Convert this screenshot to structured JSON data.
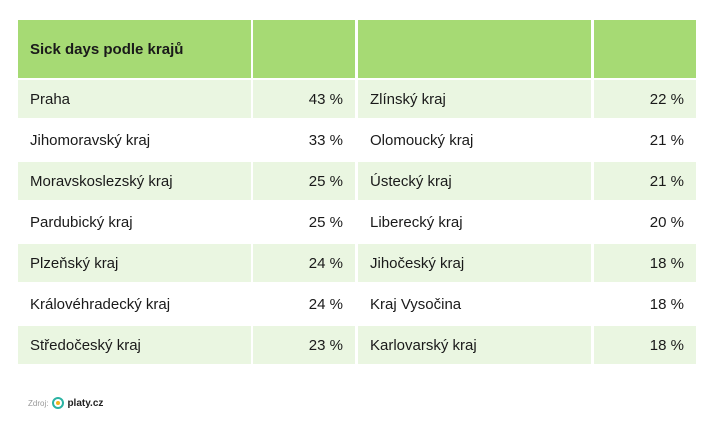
{
  "header": {
    "title": "Sick days podle krajů"
  },
  "table": {
    "rows": [
      [
        "Praha",
        "43 %",
        "Zlínský kraj",
        "22 %"
      ],
      [
        "Jihomoravský kraj",
        "33 %",
        "Olomoucký kraj",
        "21 %"
      ],
      [
        "Moravskoslezský kraj",
        "25 %",
        "Ústecký kraj",
        "21 %"
      ],
      [
        "Pardubický kraj",
        "25 %",
        "Liberecký kraj",
        "20 %"
      ],
      [
        "Plzeňský kraj",
        "24 %",
        "Jihočeský kraj",
        "18 %"
      ],
      [
        "Královéhradecký kraj",
        "24 %",
        "Kraj Vysočina",
        "18 %"
      ],
      [
        "Středočeský kraj",
        "23 %",
        "Karlovarský kraj",
        "18 %"
      ]
    ]
  },
  "footer": {
    "source_label": "Zdroj:",
    "logo": "platy.cz"
  }
}
